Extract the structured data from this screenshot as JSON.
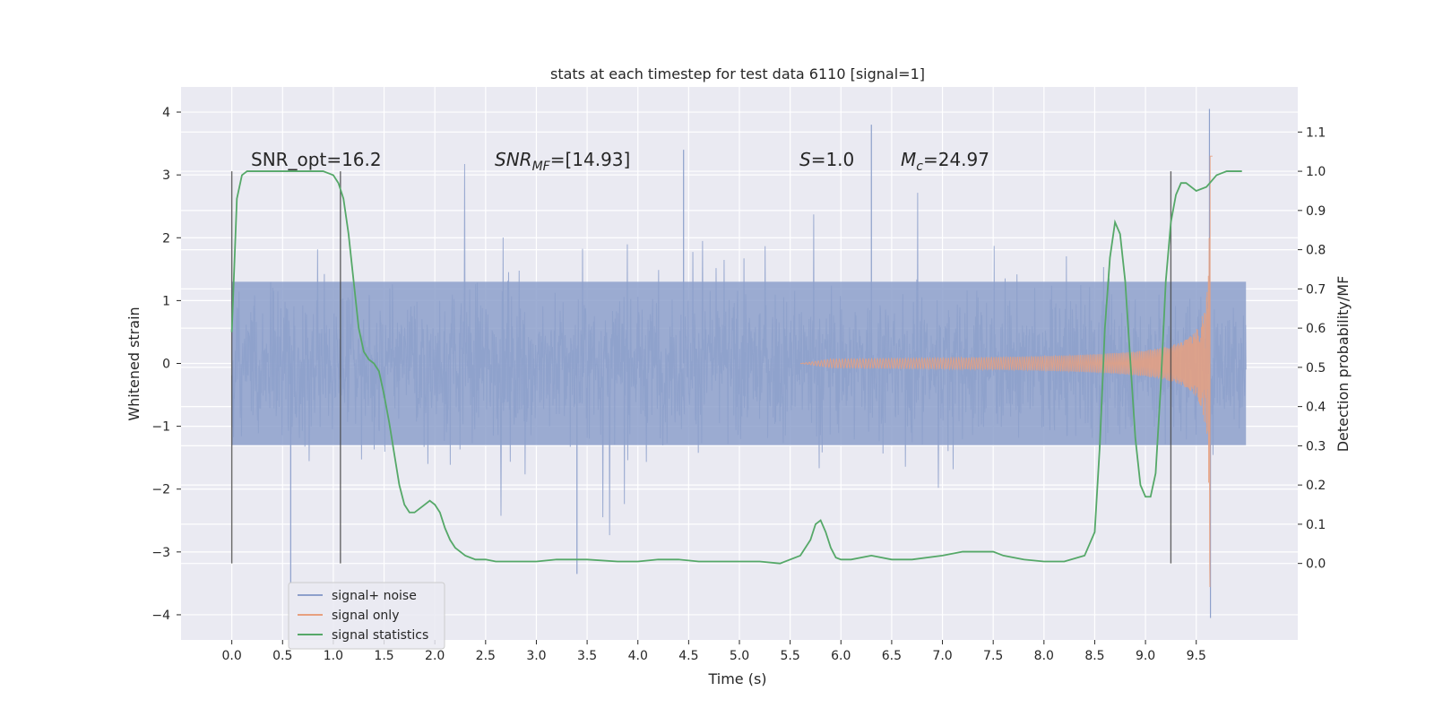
{
  "chart_data": {
    "type": "line",
    "title": "stats at each timestep for test data 6110 [signal=1]",
    "xlabel": "Time (s)",
    "ylabel_left": "Whitened strain",
    "ylabel_right": "Detection probability/MF",
    "x_ticks": [
      "0.0",
      "0.5",
      "1.0",
      "1.5",
      "2.0",
      "2.5",
      "3.0",
      "3.5",
      "4.0",
      "4.5",
      "5.0",
      "5.5",
      "6.0",
      "6.5",
      "7.0",
      "7.5",
      "8.0",
      "8.5",
      "9.0",
      "9.5"
    ],
    "y_left_ticks": [
      "4",
      "3",
      "2",
      "1",
      "0",
      "−1",
      "−2",
      "−3",
      "−4"
    ],
    "y_right_ticks": [
      "1.1",
      "1.0",
      "0.9",
      "0.8",
      "0.7",
      "0.6",
      "0.5",
      "0.4",
      "0.3",
      "0.2",
      "0.1",
      "0.0"
    ],
    "xlim": [
      -0.5,
      10.5
    ],
    "ylim_left": [
      -4.4,
      4.4
    ],
    "ylim_right": [
      -0.195,
      1.215
    ],
    "grid": true,
    "legend_position": "lower-left",
    "annotations": {
      "snr_opt": "SNR_opt=16.2",
      "snr_mf_main": "SNR",
      "snr_mf_sub": "MF",
      "snr_mf_value": "=[14.93]",
      "s_main": "S",
      "s_value": "=1.0",
      "mc_main": "M",
      "mc_sub": "c",
      "mc_value": "=24.97"
    },
    "vertical_markers": [
      0.0,
      1.07,
      9.25
    ],
    "series": [
      {
        "name": "signal+ noise",
        "color": "#8da0cb",
        "x_range": [
          0.0,
          9.99
        ],
        "description_points": {
          "amplitude_typical": 1.3,
          "spikes_max": 4.05,
          "spikes_min": -4.05
        }
      },
      {
        "name": "signal only",
        "color": "#e8a07f",
        "chirp": {
          "start": 5.6,
          "peak_time": 9.64,
          "peak_amplitude": 3.6,
          "end": 9.66
        }
      },
      {
        "name": "signal statistics",
        "color": "#55a868",
        "x": [
          0.0,
          0.05,
          0.1,
          0.15,
          0.2,
          0.3,
          0.5,
          0.7,
          0.9,
          1.0,
          1.05,
          1.1,
          1.15,
          1.2,
          1.25,
          1.3,
          1.35,
          1.4,
          1.45,
          1.5,
          1.55,
          1.6,
          1.65,
          1.7,
          1.75,
          1.8,
          1.85,
          1.9,
          1.95,
          2.0,
          2.05,
          2.1,
          2.15,
          2.2,
          2.25,
          2.3,
          2.4,
          2.5,
          2.6,
          2.8,
          3.0,
          3.2,
          3.5,
          3.8,
          4.0,
          4.2,
          4.4,
          4.6,
          4.8,
          5.0,
          5.2,
          5.4,
          5.6,
          5.7,
          5.75,
          5.8,
          5.85,
          5.9,
          5.95,
          6.0,
          6.1,
          6.3,
          6.5,
          6.7,
          7.0,
          7.2,
          7.4,
          7.5,
          7.6,
          7.8,
          8.0,
          8.2,
          8.4,
          8.5,
          8.55,
          8.6,
          8.65,
          8.7,
          8.75,
          8.8,
          8.85,
          8.9,
          8.95,
          9.0,
          9.05,
          9.1,
          9.15,
          9.2,
          9.25,
          9.3,
          9.35,
          9.4,
          9.5,
          9.6,
          9.7,
          9.8,
          9.9,
          9.95
        ],
        "y": [
          0.59,
          0.93,
          0.99,
          1.0,
          1.0,
          1.0,
          1.0,
          1.0,
          1.0,
          0.99,
          0.97,
          0.93,
          0.84,
          0.72,
          0.6,
          0.54,
          0.52,
          0.51,
          0.49,
          0.43,
          0.36,
          0.28,
          0.2,
          0.15,
          0.13,
          0.13,
          0.14,
          0.15,
          0.16,
          0.15,
          0.13,
          0.09,
          0.06,
          0.04,
          0.03,
          0.02,
          0.01,
          0.01,
          0.005,
          0.005,
          0.005,
          0.01,
          0.01,
          0.005,
          0.005,
          0.01,
          0.01,
          0.005,
          0.005,
          0.005,
          0.005,
          0.0,
          0.02,
          0.06,
          0.1,
          0.11,
          0.08,
          0.04,
          0.015,
          0.01,
          0.01,
          0.02,
          0.01,
          0.01,
          0.02,
          0.03,
          0.03,
          0.03,
          0.02,
          0.01,
          0.005,
          0.005,
          0.02,
          0.08,
          0.3,
          0.6,
          0.78,
          0.87,
          0.84,
          0.72,
          0.52,
          0.32,
          0.2,
          0.17,
          0.17,
          0.23,
          0.45,
          0.72,
          0.87,
          0.94,
          0.97,
          0.97,
          0.95,
          0.96,
          0.99,
          1.0,
          1.0,
          1.0
        ]
      }
    ]
  }
}
